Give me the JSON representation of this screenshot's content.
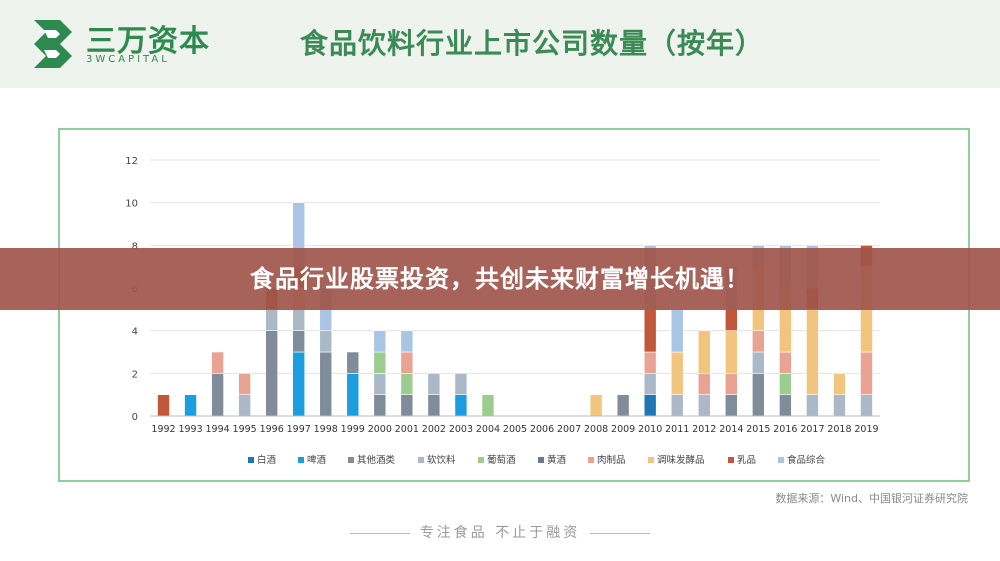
{
  "brand": {
    "name": "三万资本",
    "sub": "3WCAPITAL"
  },
  "page_title": "食品饮料行业上市公司数量（按年）",
  "banner": "食品行业股票投资，共创未来财富增长机遇！",
  "source": "数据来源：Wind、中国银河证券研究院",
  "footer": "专注食品  不止于融资",
  "colors": {
    "白酒": "#1f77b4",
    "啤酒": "#1a9ee0",
    "其他酒类": "#7f8c9a",
    "软饮料": "#aab8c8",
    "葡萄酒": "#9ccc8f",
    "黄酒": "#6c7a89",
    "肉制品": "#e9a393",
    "调味发酵品": "#f2c57f",
    "乳品": "#c2573a",
    "食品综合": "#a9c4e4"
  },
  "chart_data": {
    "type": "bar",
    "stacked": true,
    "categories": [
      "1992",
      "1993",
      "1994",
      "1995",
      "1996",
      "1997",
      "1998",
      "1999",
      "2000",
      "2001",
      "2002",
      "2003",
      "2004",
      "2005",
      "2006",
      "2007",
      "2008",
      "2009",
      "2010",
      "2011",
      "2012",
      "2014",
      "2015",
      "2016",
      "2017",
      "2018",
      "2019"
    ],
    "ylim": [
      0,
      12
    ],
    "yticks": [
      0,
      2,
      4,
      6,
      8,
      10,
      12
    ],
    "legend_position": "bottom",
    "grid": true,
    "series": [
      {
        "name": "白酒",
        "values": [
          0,
          0,
          0,
          0,
          0,
          0,
          0,
          0,
          0,
          0,
          0,
          0,
          0,
          0,
          0,
          0,
          0,
          0,
          1,
          0,
          0,
          0,
          0,
          0,
          0,
          0,
          0
        ]
      },
      {
        "name": "啤酒",
        "values": [
          0,
          1,
          0,
          0,
          0,
          3,
          0,
          2,
          0,
          0,
          0,
          1,
          0,
          0,
          0,
          0,
          0,
          0,
          0,
          0,
          0,
          0,
          0,
          0,
          0,
          0,
          0
        ]
      },
      {
        "name": "其他酒类",
        "values": [
          0,
          0,
          2,
          0,
          4,
          1,
          3,
          1,
          1,
          1,
          1,
          0,
          0,
          0,
          0,
          0,
          0,
          1,
          0,
          0,
          0,
          1,
          2,
          1,
          0,
          0,
          0
        ]
      },
      {
        "name": "软饮料",
        "values": [
          0,
          0,
          0,
          1,
          1,
          1,
          1,
          0,
          1,
          0,
          1,
          1,
          0,
          0,
          0,
          0,
          0,
          0,
          1,
          1,
          1,
          0,
          1,
          0,
          1,
          1,
          1
        ]
      },
      {
        "name": "葡萄酒",
        "values": [
          0,
          0,
          0,
          0,
          0,
          0,
          0,
          0,
          1,
          1,
          0,
          0,
          1,
          0,
          0,
          0,
          0,
          0,
          0,
          0,
          0,
          0,
          0,
          1,
          0,
          0,
          0
        ]
      },
      {
        "name": "黄酒",
        "values": [
          0,
          0,
          0,
          0,
          0,
          0,
          0,
          0,
          0,
          0,
          0,
          0,
          0,
          0,
          0,
          0,
          0,
          0,
          0,
          0,
          0,
          0,
          0,
          0,
          0,
          0,
          0
        ]
      },
      {
        "name": "肉制品",
        "values": [
          0,
          0,
          1,
          1,
          0,
          0,
          0,
          0,
          0,
          1,
          0,
          0,
          0,
          0,
          0,
          0,
          0,
          0,
          1,
          0,
          1,
          1,
          1,
          1,
          0,
          0,
          2
        ]
      },
      {
        "name": "调味发酵品",
        "values": [
          0,
          0,
          0,
          0,
          0,
          1,
          0,
          0,
          0,
          0,
          0,
          0,
          0,
          0,
          0,
          0,
          1,
          0,
          0,
          2,
          2,
          2,
          3,
          3,
          4,
          1,
          4
        ]
      },
      {
        "name": "乳品",
        "values": [
          1,
          0,
          0,
          0,
          1,
          1,
          0,
          0,
          0,
          0,
          0,
          0,
          0,
          0,
          0,
          0,
          0,
          0,
          2,
          0,
          0,
          1,
          0,
          0,
          1,
          0,
          1
        ]
      },
      {
        "name": "食品综合",
        "values": [
          0,
          0,
          0,
          0,
          0,
          3,
          2,
          0,
          1,
          1,
          0,
          0,
          0,
          0,
          0,
          0,
          0,
          0,
          3,
          2,
          0,
          2,
          1,
          2,
          2,
          0,
          0
        ]
      }
    ]
  }
}
